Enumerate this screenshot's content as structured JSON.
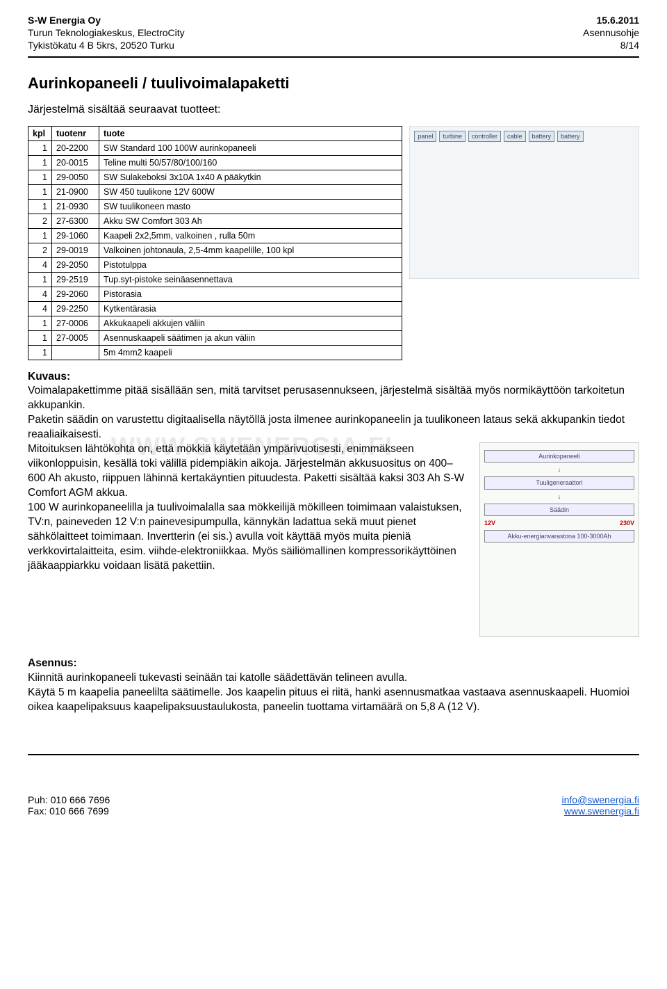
{
  "header": {
    "company": "S-W Energia Oy",
    "addr1": "Turun Teknologiakeskus, ElectroCity",
    "addr2": "Tykistökatu 4 B 5krs, 20520 Turku",
    "date": "15.6.2011",
    "doctype": "Asennusohje",
    "page": "8/14"
  },
  "title": "Aurinkopaneeli / tuulivoimalapaketti",
  "intro": "Järjestelmä sisältää seuraavat tuotteet:",
  "table": {
    "headers": [
      "kpl",
      "tuotenr",
      "tuote"
    ],
    "rows": [
      [
        "1",
        "20-2200",
        "SW Standard 100 100W aurinkopaneeli"
      ],
      [
        "1",
        "20-0015",
        "Teline multi 50/57/80/100/160"
      ],
      [
        "1",
        "29-0050",
        "SW Sulakeboksi 3x10A 1x40 A pääkytkin"
      ],
      [
        "1",
        "21-0900",
        "SW 450 tuulikone 12V 600W"
      ],
      [
        "1",
        "21-0930",
        "SW tuulikoneen masto"
      ],
      [
        "2",
        "27-6300",
        "Akku SW Comfort 303 Ah"
      ],
      [
        "1",
        "29-1060",
        "Kaapeli 2x2,5mm, valkoinen , rulla 50m"
      ],
      [
        "2",
        "29-0019",
        "Valkoinen johtonaula, 2,5-4mm kaapelille, 100 kpl"
      ],
      [
        "4",
        "29-2050",
        "Pistotulppa"
      ],
      [
        "1",
        "29-2519",
        "Tup.syt-pistoke seinäasennettava"
      ],
      [
        "4",
        "29-2060",
        "Pistorasia"
      ],
      [
        "4",
        "29-2250",
        "Kytkentärasia"
      ],
      [
        "1",
        "27-0006",
        "Akkukaapeli akkujen väliin"
      ],
      [
        "1",
        "27-0005",
        "Asennuskaapeli säätimen ja akun väliin"
      ],
      [
        "1",
        "",
        "5m 4mm2 kaapeli"
      ]
    ]
  },
  "watermark": "WWW.SWENERGIA.FI",
  "kuvaus": {
    "label": "Kuvaus:",
    "p1": "Voimalapakettimme pitää sisällään sen, mitä tarvitset perusasennukseen, järjestelmä sisältää myös normikäyttöön tarkoitetun akkupankin.",
    "p2": "Paketin säädin on varustettu digitaalisella näytöllä josta ilmenee aurinkopaneelin ja tuulikoneen lataus sekä akkupankin tiedot reaaliaikaisesti.",
    "p3": "Mitoituksen lähtökohta on, että mökkiä käytetään ympärivuotisesti, enimmäkseen viikonloppuisin, kesällä toki välillä pidempiäkin aikoja. Järjestelmän akkusuositus on 400– 600 Ah akusto, riippuen lähinnä kertakäyntien pituudesta. Paketti sisältää kaksi 303 Ah S-W Comfort AGM akkua.",
    "p4": "100 W aurinkopaneelilla ja tuulivoimalalla saa mökkeilijä mökilleen toimimaan valaistuksen, TV:n, paineveden 12 V:n painevesipumpulla, kännykän ladattua sekä muut pienet sähkölaitteet toimimaan. Invertterin (ei sis.) avulla voit käyttää myös muita pieniä verkkovirtalaitteita, esim. viihde-elektroniikkaa. Myös säiliömallinen kompressorikäyttöinen jääkaappiarkku voidaan lisätä pakettiin."
  },
  "diagram_labels": {
    "panel": "Aurinkopaneeli",
    "gen": "Tuuligeneraattori",
    "ctrl": "Säädin",
    "batt": "Akku-energianvarastona 100-3000Ah",
    "v12": "12V",
    "v230": "230V"
  },
  "asennus": {
    "label": "Asennus:",
    "p1": "Kiinnitä aurinkopaneeli tukevasti seinään tai katolle säädettävän telineen avulla.",
    "p2": "Käytä 5 m kaapelia paneelilta säätimelle. Jos kaapelin pituus ei riitä, hanki asennusmatkaa vastaava asennuskaapeli. Huomioi oikea kaapelipaksuus kaapelipaksuustaulukosta, paneelin tuottama virtamäärä on 5,8 A (12 V)."
  },
  "footer": {
    "phone": "Puh: 010 666 7696",
    "fax": "Fax: 010 666 7699",
    "mail": "info@swenergia.fi",
    "web": "www.swenergia.fi"
  }
}
